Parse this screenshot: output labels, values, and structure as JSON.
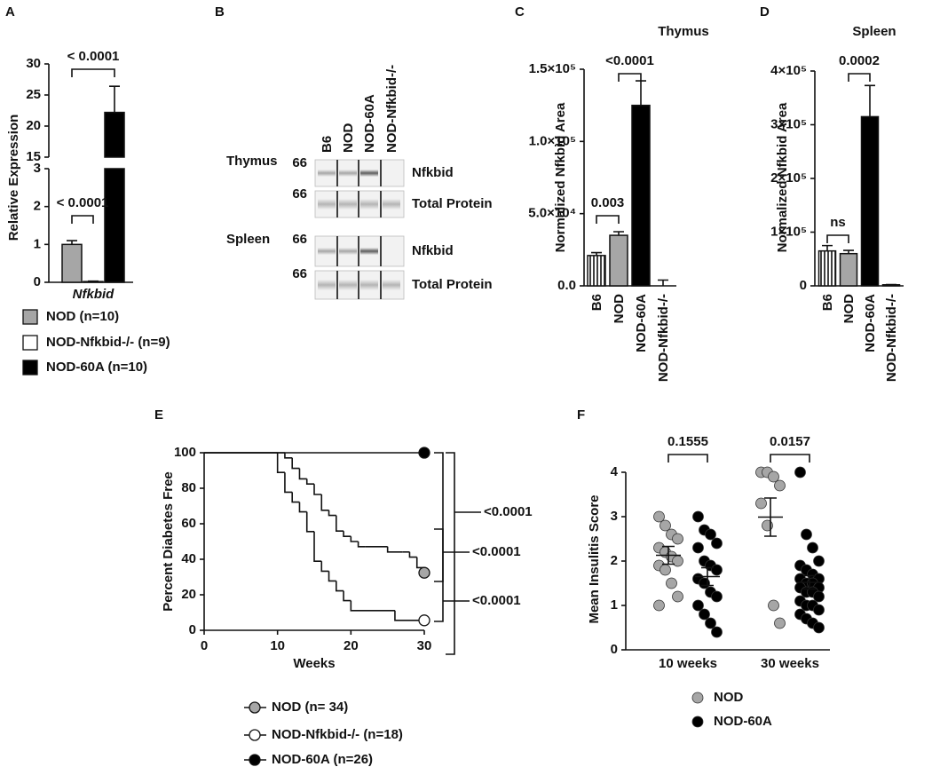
{
  "chart_data": [
    {
      "type": "grouped_bar",
      "panel": "A",
      "ylabel": "Relative Expression",
      "categories": [
        "Nfkbid"
      ],
      "series": [
        {
          "name": "NOD  (n=10)",
          "color": "#a6a6a6",
          "values": [
            1.0
          ],
          "errors": [
            0.1
          ]
        },
        {
          "name": "NOD-Nfkbid-/- (n=9)",
          "color": "#ffffff",
          "values": [
            0.02
          ],
          "errors": [
            0.01
          ]
        },
        {
          "name": "NOD-60A (n=10)",
          "color": "#000000",
          "values": [
            22.2
          ],
          "errors": [
            4.2
          ]
        }
      ],
      "ylim": [
        0,
        30
      ],
      "ybreak": [
        3,
        15
      ],
      "yticks": [
        0,
        1,
        2,
        3,
        15,
        20,
        25,
        30
      ],
      "annotations": [
        "< 0.0001",
        "< 0.0001"
      ]
    },
    {
      "type": "bar",
      "panel": "C",
      "title": "Thymus",
      "ylabel": "Normalized Nfkbid Area",
      "categories": [
        "B6",
        "NOD",
        "NOD-60A",
        "NOD-Nfkbid-/-"
      ],
      "values": [
        21000,
        35000,
        125000,
        0
      ],
      "errors": [
        2000,
        2500,
        17000,
        4000
      ],
      "colors": [
        "#ffffff",
        "#a6a6a6",
        "#000000",
        "#ffffff"
      ],
      "hatch": [
        true,
        false,
        false,
        false
      ],
      "ylim": [
        0,
        150000
      ],
      "yticks": [
        {
          "value": 0,
          "label": "0.0"
        },
        {
          "value": 50000,
          "label": "5.0×10⁴"
        },
        {
          "value": 100000,
          "label": "1.0×10⁵"
        },
        {
          "value": 150000,
          "label": "1.5×10⁵"
        }
      ],
      "annotations": [
        "0.003",
        "<0.0001"
      ]
    },
    {
      "type": "bar",
      "panel": "D",
      "title": "Spleen",
      "ylabel": "Normalized Nfkbid Area",
      "categories": [
        "B6",
        "NOD",
        "NOD-60A",
        "NOD-Nfkbid-/-"
      ],
      "values": [
        65000,
        60000,
        315000,
        2000
      ],
      "errors": [
        10000,
        6000,
        58000,
        500
      ],
      "colors": [
        "#ffffff",
        "#a6a6a6",
        "#000000",
        "#ffffff"
      ],
      "hatch": [
        true,
        false,
        false,
        false
      ],
      "ylim": [
        0,
        400000
      ],
      "yticks": [
        0,
        {
          "value": 100000,
          "label": "1×10⁵"
        },
        {
          "value": 200000,
          "label": "2×10⁵"
        },
        {
          "value": 300000,
          "label": "3×10⁵"
        },
        {
          "value": 400000,
          "label": "4×10⁵"
        }
      ],
      "annotations": [
        "ns",
        "0.0002"
      ]
    },
    {
      "type": "survival",
      "panel": "E",
      "xlabel": "Weeks",
      "ylabel": "Percent Diabetes Free",
      "series": [
        {
          "name": "NOD (n= 34)",
          "color": "#a6a6a6",
          "x": [
            0,
            11,
            12,
            13,
            14,
            15,
            16,
            17,
            18,
            19,
            20,
            21,
            22,
            25,
            27,
            28,
            29,
            30
          ],
          "values": [
            100,
            97.1,
            91.2,
            85.3,
            82.4,
            76.5,
            67.6,
            64.7,
            55.9,
            52.9,
            50,
            47.1,
            47.1,
            44.1,
            44.1,
            41.2,
            35.3,
            32.4
          ]
        },
        {
          "name": "NOD-Nfkbid-/- (n=18)",
          "color": "#ffffff",
          "x": [
            0,
            10,
            11,
            12,
            13,
            14,
            15,
            16,
            17,
            18,
            19,
            20,
            26,
            30
          ],
          "values": [
            100,
            88.9,
            77.8,
            72.2,
            66.7,
            55.6,
            38.9,
            33.3,
            27.8,
            22.2,
            16.7,
            11.1,
            5.6,
            5.6
          ]
        },
        {
          "name": "NOD-60A (n=26)",
          "color": "#000000",
          "x": [
            0,
            30
          ],
          "values": [
            100,
            100
          ]
        }
      ],
      "xlim": [
        0,
        30
      ],
      "xticks": [
        0,
        10,
        20,
        30
      ],
      "ylim": [
        0,
        100
      ],
      "yticks": [
        0,
        20,
        40,
        60,
        80,
        100
      ],
      "annotations": [
        "<0.0001",
        "<0.0001",
        "<0.0001"
      ]
    },
    {
      "type": "dot",
      "panel": "F",
      "ylabel": "Mean Insulitis Score",
      "categories": [
        "10 weeks",
        "30 weeks"
      ],
      "series": [
        {
          "name": "NOD",
          "color": "#a6a6a6",
          "values": [
            [
              3.0,
              2.8,
              2.6,
              2.5,
              2.3,
              2.2,
              2.1,
              2.0,
              1.9,
              1.8,
              1.5,
              1.2,
              1.0
            ],
            [
              4.0,
              4.0,
              3.9,
              3.7,
              3.3,
              2.8,
              1.0,
              0.6
            ]
          ],
          "mean": [
            2.13,
            2.99
          ],
          "errors": [
            0.2,
            0.43
          ]
        },
        {
          "name": "NOD-60A",
          "color": "#000000",
          "values": [
            [
              3.0,
              2.7,
              2.6,
              2.4,
              2.3,
              2.0,
              1.9,
              1.8,
              1.6,
              1.5,
              1.3,
              1.2,
              1.0,
              0.8,
              0.6,
              0.4
            ],
            [
              4.0,
              2.6,
              2.3,
              2.0,
              1.9,
              1.8,
              1.7,
              1.6,
              1.6,
              1.5,
              1.5,
              1.4,
              1.4,
              1.3,
              1.3,
              1.2,
              1.1,
              1.0,
              1.0,
              0.9,
              0.8,
              0.7,
              0.6,
              0.5
            ]
          ],
          "mean": [
            1.65,
            1.52
          ],
          "errors": [
            0.2,
            0.15
          ]
        }
      ],
      "ylim": [
        0,
        4
      ],
      "yticks": [
        0,
        1,
        2,
        3,
        4
      ],
      "annotations": [
        "0.1555",
        "0.0157"
      ]
    }
  ],
  "blot": {
    "panel": "B",
    "lanes": [
      "B6",
      "NOD",
      "NOD-60A",
      "NOD-Nfkbid-/-"
    ],
    "marker": "66",
    "tissues": [
      {
        "name": "Thymus",
        "bands": [
          "Nfkbid",
          "Total Protein"
        ]
      },
      {
        "name": "Spleen",
        "bands": [
          "Nfkbid",
          "Total Protein"
        ]
      }
    ]
  }
}
